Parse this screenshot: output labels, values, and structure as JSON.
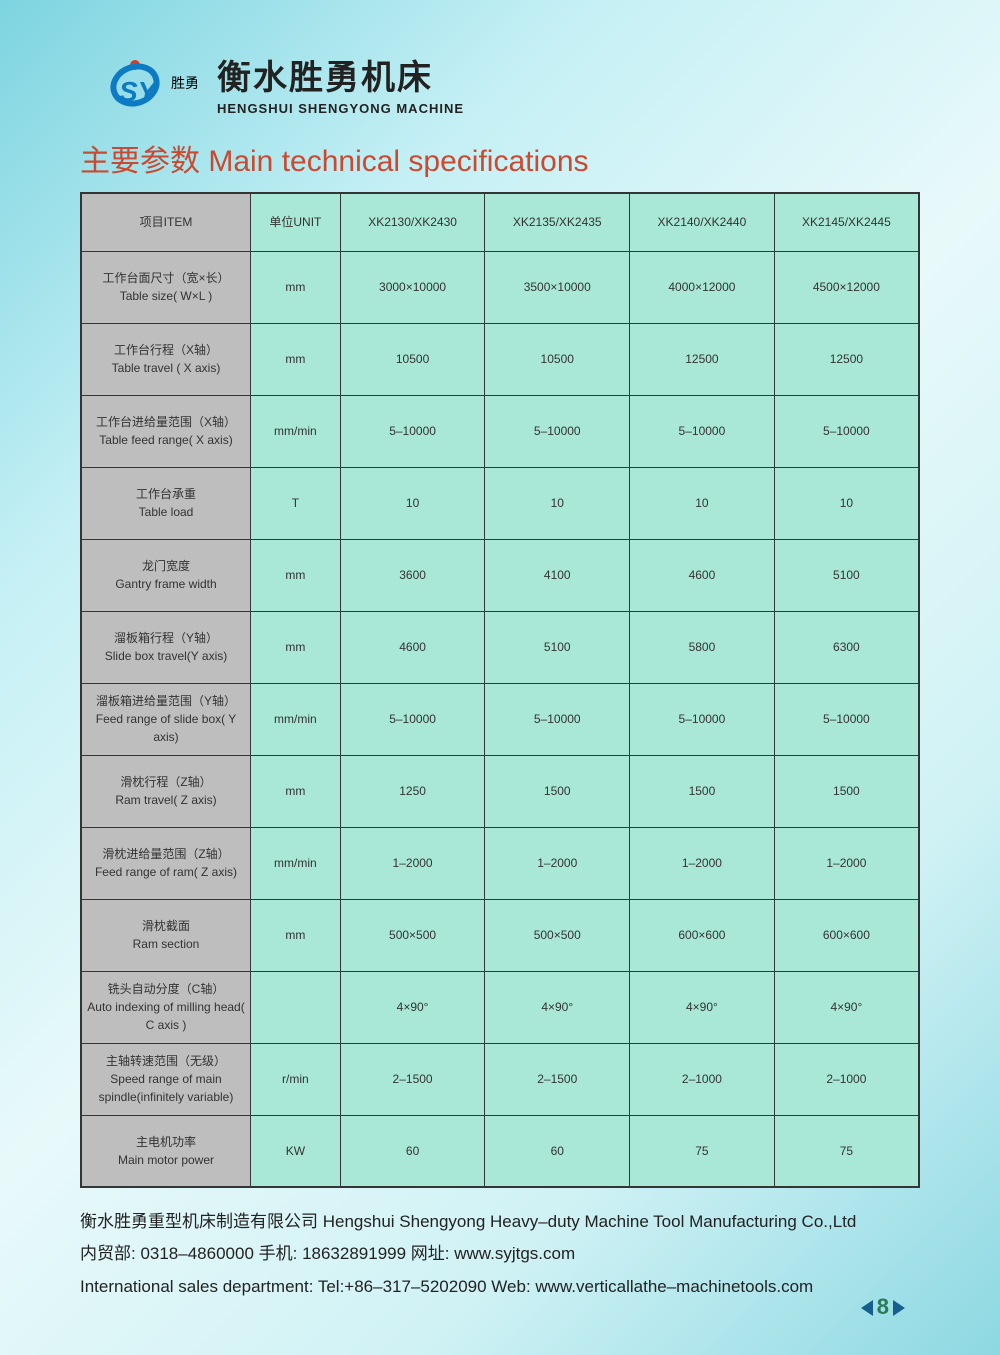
{
  "logo": {
    "brand_letters": "SY",
    "brand_cn": "胜勇"
  },
  "company": {
    "cn": "衡水胜勇机床",
    "en": "HENGSHUI SHENGYONG MACHINE"
  },
  "section_title": "主要参数  Main technical specifications",
  "table": {
    "header_bg": "#a9e8d6",
    "item_col_bg": "#bebebe",
    "data_col_bg": "#a9e8d6",
    "border_color": "#353535",
    "columns": [
      "项目ITEM",
      "单位UNIT",
      "XK2130/XK2430",
      "XK2135/XK2435",
      "XK2140/XK2440",
      "XK2145/XK2445"
    ],
    "rows": [
      {
        "item_cn": "工作台面尺寸（宽×长）",
        "item_en": "Table size( W×L )",
        "unit": "mm",
        "vals": [
          "3000×10000",
          "3500×10000",
          "4000×12000",
          "4500×12000"
        ]
      },
      {
        "item_cn": "工作台行程（X轴）",
        "item_en": "Table travel ( X axis)",
        "unit": "mm",
        "vals": [
          "10500",
          "10500",
          "12500",
          "12500"
        ]
      },
      {
        "item_cn": "工作台进给量范围（X轴）",
        "item_en": "Table feed range( X axis)",
        "unit": "mm/min",
        "vals": [
          "5–10000",
          "5–10000",
          "5–10000",
          "5–10000"
        ]
      },
      {
        "item_cn": "工作台承重",
        "item_en": "Table load",
        "unit": "T",
        "vals": [
          "10",
          "10",
          "10",
          "10"
        ]
      },
      {
        "item_cn": "龙门宽度",
        "item_en": "Gantry frame width",
        "unit": "mm",
        "vals": [
          "3600",
          "4100",
          "4600",
          "5100"
        ]
      },
      {
        "item_cn": "溜板箱行程（Y轴）",
        "item_en": "Slide box travel(Y axis)",
        "unit": "mm",
        "vals": [
          "4600",
          "5100",
          "5800",
          "6300"
        ]
      },
      {
        "item_cn": "溜板箱进给量范围（Y轴）",
        "item_en": "Feed range of slide box( Y axis)",
        "unit": "mm/min",
        "vals": [
          "5–10000",
          "5–10000",
          "5–10000",
          "5–10000"
        ]
      },
      {
        "item_cn": "滑枕行程（Z轴）",
        "item_en": "Ram travel( Z axis)",
        "unit": "mm",
        "vals": [
          "1250",
          "1500",
          "1500",
          "1500"
        ]
      },
      {
        "item_cn": "滑枕进给量范围（Z轴）",
        "item_en": "Feed range of ram( Z axis)",
        "unit": "mm/min",
        "vals": [
          "1–2000",
          "1–2000",
          "1–2000",
          "1–2000"
        ]
      },
      {
        "item_cn": "滑枕截面",
        "item_en": "Ram section",
        "unit": "mm",
        "vals": [
          "500×500",
          "500×500",
          "600×600",
          "600×600"
        ]
      },
      {
        "item_cn": "铣头自动分度（C轴）",
        "item_en": "Auto indexing of milling head( C axis )",
        "unit": "",
        "vals": [
          "4×90°",
          "4×90°",
          "4×90°",
          "4×90°"
        ]
      },
      {
        "item_cn": "主轴转速范围（无级）",
        "item_en": "Speed range of main spindle(infinitely variable)",
        "unit": "r/min",
        "vals": [
          "2–1500",
          "2–1500",
          "2–1000",
          "2–1000"
        ]
      },
      {
        "item_cn": "主电机功率",
        "item_en": "Main motor power",
        "unit": "KW",
        "vals": [
          "60",
          "60",
          "75",
          "75"
        ]
      }
    ]
  },
  "footer": {
    "line1": "衡水胜勇重型机床制造有限公司 Hengshui Shengyong Heavy–duty Machine Tool Manufacturing Co.,Ltd",
    "line2": "内贸部: 0318–4860000    手机: 18632891999    网址: www.syjtgs.com",
    "line3": "International sales department:  Tel:+86–317–5202090  Web: www.verticallathe–machinetools.com"
  },
  "page_number": "8",
  "colors": {
    "title": "#c94a30",
    "logo_blue": "#0d7ac4",
    "logo_red": "#d83a2a"
  }
}
